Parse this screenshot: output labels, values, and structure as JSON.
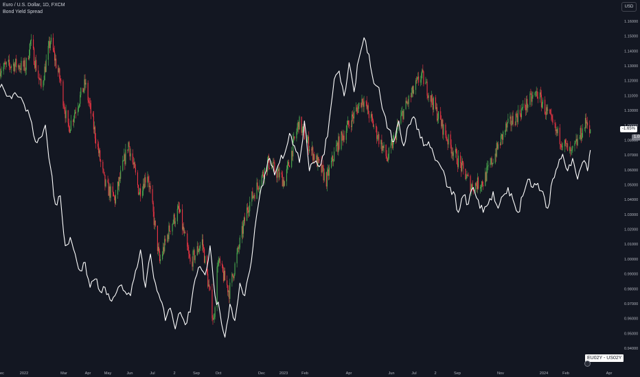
{
  "legend": {
    "symbol_line": "Euro / U.S. Dollar, 1D, FXCM",
    "indicator_line": "Bond Yield Spread"
  },
  "currency_button": "USD",
  "badges": {
    "spread_value": "-1.65%",
    "last_price": "1.08374"
  },
  "series_tag": "EU02Y - US02Y",
  "colors": {
    "background": "#131722",
    "up_candle": "#4caf50",
    "down_candle": "#f23645",
    "spread_line": "#ffffff",
    "axis_text": "#b2b5be"
  },
  "chart_data": {
    "type": "candlestick",
    "title": "Euro / U.S. Dollar, 1D, FXCM",
    "y_axis": {
      "ticks": [
        "1.16000",
        "1.15000",
        "1.14000",
        "1.13000",
        "1.12000",
        "1.11000",
        "1.10000",
        "1.09000",
        "1.08000",
        "1.07000",
        "1.06000",
        "1.05000",
        "1.04000",
        "1.03000",
        "1.02000",
        "1.01000",
        "1.00000",
        "0.99000",
        "0.98000",
        "0.97000",
        "0.96000",
        "0.95000",
        "0.94000"
      ],
      "range": [
        0.938,
        1.165
      ]
    },
    "x_axis": {
      "ticks": [
        "ec",
        "2022",
        "Mar",
        "Apr",
        "May",
        "Jun",
        "Jul",
        "2",
        "Sep",
        "Oct",
        "Dec",
        "2023",
        "Feb",
        "Apr",
        "Jun",
        "Jul",
        "2",
        "Sep",
        "Nov",
        "2024",
        "Feb",
        "Apr"
      ],
      "range": [
        "2021-12-01",
        "2024-04-20"
      ]
    },
    "close_path": [
      [
        "2021-12-01",
        1.128
      ],
      [
        "2021-12-20",
        1.131
      ],
      [
        "2022-01-06",
        1.129
      ],
      [
        "2022-01-13",
        1.146
      ],
      [
        "2022-01-28",
        1.115
      ],
      [
        "2022-02-10",
        1.147
      ],
      [
        "2022-02-24",
        1.12
      ],
      [
        "2022-03-07",
        1.087
      ],
      [
        "2022-03-31",
        1.118
      ],
      [
        "2022-04-14",
        1.084
      ],
      [
        "2022-04-28",
        1.05
      ],
      [
        "2022-05-12",
        1.04
      ],
      [
        "2022-05-31",
        1.078
      ],
      [
        "2022-06-15",
        1.045
      ],
      [
        "2022-06-27",
        1.058
      ],
      [
        "2022-07-14",
        0.998
      ],
      [
        "2022-07-29",
        1.022
      ],
      [
        "2022-08-10",
        1.033
      ],
      [
        "2022-08-26",
        0.997
      ],
      [
        "2022-09-12",
        1.012
      ],
      [
        "2022-09-28",
        0.958
      ],
      [
        "2022-10-04",
        0.999
      ],
      [
        "2022-10-20",
        0.978
      ],
      [
        "2022-11-15",
        1.035
      ],
      [
        "2022-12-14",
        1.065
      ],
      [
        "2023-01-06",
        1.052
      ],
      [
        "2023-01-26",
        1.092
      ],
      [
        "2023-02-13",
        1.073
      ],
      [
        "2023-03-06",
        1.053
      ],
      [
        "2023-03-20",
        1.075
      ],
      [
        "2023-04-26",
        1.108
      ],
      [
        "2023-05-31",
        1.067
      ],
      [
        "2023-06-22",
        1.099
      ],
      [
        "2023-07-18",
        1.124
      ],
      [
        "2023-08-25",
        1.079
      ],
      [
        "2023-09-26",
        1.049
      ],
      [
        "2023-10-13",
        1.052
      ],
      [
        "2023-11-14",
        1.088
      ],
      [
        "2023-12-28",
        1.112
      ],
      [
        "2024-01-23",
        1.086
      ],
      [
        "2024-02-14",
        1.07
      ],
      [
        "2024-03-08",
        1.094
      ],
      [
        "2024-03-12",
        1.0837
      ]
    ],
    "series": [
      {
        "name": "EU02Y - US02Y",
        "axis": "overlay",
        "points": [
          [
            "2021-12-01",
            -0.9
          ],
          [
            "2021-12-08",
            -0.95
          ],
          [
            "2021-12-15",
            -1.0
          ],
          [
            "2021-12-22",
            -0.96
          ],
          [
            "2022-01-04",
            -1.1
          ],
          [
            "2022-01-12",
            -1.25
          ],
          [
            "2022-01-20",
            -1.55
          ],
          [
            "2022-01-27",
            -1.5
          ],
          [
            "2022-02-03",
            -1.35
          ],
          [
            "2022-02-10",
            -1.85
          ],
          [
            "2022-02-17",
            -2.3
          ],
          [
            "2022-02-24",
            -2.2
          ],
          [
            "2022-03-03",
            -2.8
          ],
          [
            "2022-03-10",
            -2.7
          ],
          [
            "2022-03-17",
            -2.9
          ],
          [
            "2022-03-24",
            -3.1
          ],
          [
            "2022-03-31",
            -3.0
          ],
          [
            "2022-04-07",
            -3.3
          ],
          [
            "2022-04-14",
            -3.2
          ],
          [
            "2022-04-21",
            -3.35
          ],
          [
            "2022-04-28",
            -3.3
          ],
          [
            "2022-05-05",
            -3.45
          ],
          [
            "2022-05-12",
            -3.4
          ],
          [
            "2022-05-19",
            -3.28
          ],
          [
            "2022-05-26",
            -3.35
          ],
          [
            "2022-06-03",
            -3.4
          ],
          [
            "2022-06-10",
            -3.1
          ],
          [
            "2022-06-17",
            -2.85
          ],
          [
            "2022-06-24",
            -3.3
          ],
          [
            "2022-07-01",
            -2.9
          ],
          [
            "2022-07-08",
            -3.25
          ],
          [
            "2022-07-15",
            -3.45
          ],
          [
            "2022-07-22",
            -3.7
          ],
          [
            "2022-07-29",
            -3.55
          ],
          [
            "2022-08-05",
            -3.8
          ],
          [
            "2022-08-12",
            -3.6
          ],
          [
            "2022-08-19",
            -3.75
          ],
          [
            "2022-08-26",
            -3.6
          ],
          [
            "2022-09-02",
            -3.2
          ],
          [
            "2022-09-09",
            -3.05
          ],
          [
            "2022-09-16",
            -3.15
          ],
          [
            "2022-09-23",
            -2.8
          ],
          [
            "2022-09-30",
            -3.4
          ],
          [
            "2022-10-07",
            -3.6
          ],
          [
            "2022-10-14",
            -3.9
          ],
          [
            "2022-10-21",
            -3.5
          ],
          [
            "2022-10-28",
            -3.7
          ],
          [
            "2022-11-04",
            -3.25
          ],
          [
            "2022-11-11",
            -3.4
          ],
          [
            "2022-11-18",
            -3.1
          ],
          [
            "2022-11-25",
            -2.6
          ],
          [
            "2022-12-02",
            -2.2
          ],
          [
            "2022-12-09",
            -1.95
          ],
          [
            "2022-12-16",
            -1.75
          ],
          [
            "2022-12-23",
            -1.95
          ],
          [
            "2022-12-30",
            -1.8
          ],
          [
            "2023-01-06",
            -1.7
          ],
          [
            "2023-01-13",
            -1.45
          ],
          [
            "2023-01-20",
            -1.6
          ],
          [
            "2023-01-27",
            -1.8
          ],
          [
            "2023-02-03",
            -1.3
          ],
          [
            "2023-02-10",
            -1.9
          ],
          [
            "2023-02-17",
            -1.8
          ],
          [
            "2023-02-24",
            -1.85
          ],
          [
            "2023-03-03",
            -1.7
          ],
          [
            "2023-03-10",
            -1.3
          ],
          [
            "2023-03-17",
            -0.8
          ],
          [
            "2023-03-24",
            -0.7
          ],
          [
            "2023-03-31",
            -1.0
          ],
          [
            "2023-04-07",
            -0.6
          ],
          [
            "2023-04-14",
            -0.95
          ],
          [
            "2023-04-21",
            -0.55
          ],
          [
            "2023-04-28",
            -0.3
          ],
          [
            "2023-05-05",
            -0.5
          ],
          [
            "2023-05-12",
            -0.85
          ],
          [
            "2023-05-19",
            -0.9
          ],
          [
            "2023-05-26",
            -1.2
          ],
          [
            "2023-06-02",
            -1.4
          ],
          [
            "2023-06-09",
            -1.55
          ],
          [
            "2023-06-16",
            -1.3
          ],
          [
            "2023-06-23",
            -1.6
          ],
          [
            "2023-06-30",
            -1.35
          ],
          [
            "2023-07-07",
            -1.25
          ],
          [
            "2023-07-14",
            -1.4
          ],
          [
            "2023-07-21",
            -1.6
          ],
          [
            "2023-07-28",
            -1.55
          ],
          [
            "2023-08-04",
            -1.7
          ],
          [
            "2023-08-11",
            -1.8
          ],
          [
            "2023-08-18",
            -1.9
          ],
          [
            "2023-08-25",
            -2.1
          ],
          [
            "2023-09-01",
            -2.15
          ],
          [
            "2023-09-08",
            -2.4
          ],
          [
            "2023-09-15",
            -2.2
          ],
          [
            "2023-09-22",
            -2.3
          ],
          [
            "2023-09-29",
            -2.1
          ],
          [
            "2023-10-06",
            -2.25
          ],
          [
            "2023-10-13",
            -2.4
          ],
          [
            "2023-10-20",
            -2.3
          ],
          [
            "2023-10-27",
            -2.15
          ],
          [
            "2023-11-03",
            -2.35
          ],
          [
            "2023-11-10",
            -2.2
          ],
          [
            "2023-11-17",
            -2.1
          ],
          [
            "2023-11-24",
            -2.25
          ],
          [
            "2023-12-01",
            -2.4
          ],
          [
            "2023-12-08",
            -2.2
          ],
          [
            "2023-12-15",
            -2.0
          ],
          [
            "2023-12-22",
            -2.1
          ],
          [
            "2023-12-29",
            -2.05
          ],
          [
            "2024-01-05",
            -2.15
          ],
          [
            "2024-01-12",
            -2.35
          ],
          [
            "2024-01-19",
            -2.0
          ],
          [
            "2024-01-26",
            -1.85
          ],
          [
            "2024-02-02",
            -1.7
          ],
          [
            "2024-02-09",
            -1.9
          ],
          [
            "2024-02-16",
            -1.75
          ],
          [
            "2024-02-23",
            -2.0
          ],
          [
            "2024-03-01",
            -1.8
          ],
          [
            "2024-03-08",
            -1.9
          ],
          [
            "2024-03-12",
            -1.65
          ]
        ]
      }
    ]
  }
}
